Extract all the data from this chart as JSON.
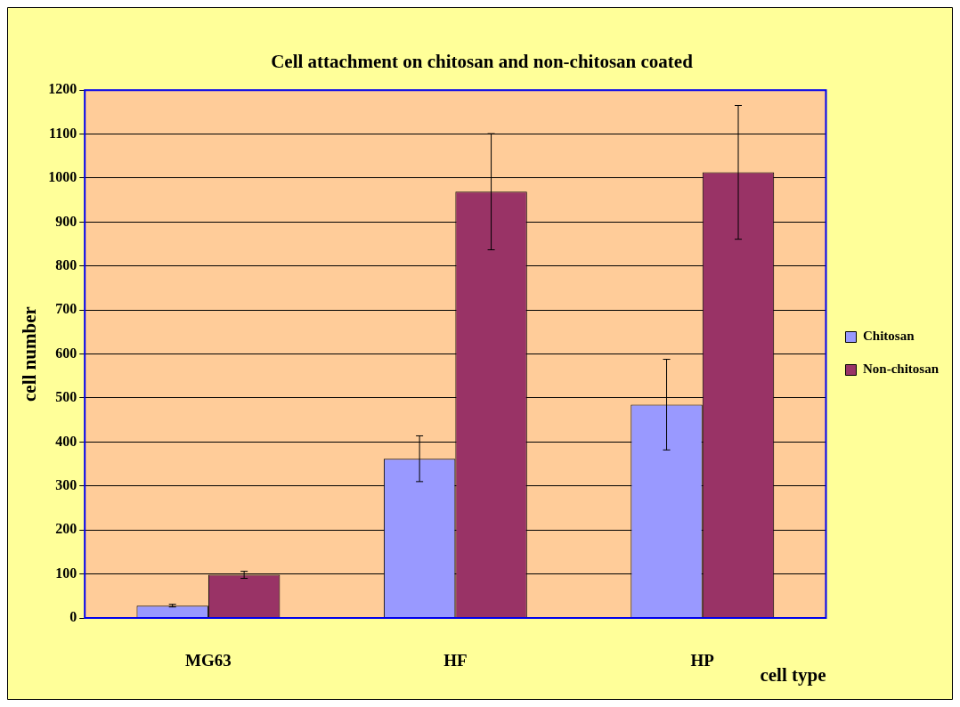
{
  "chart_data": {
    "type": "bar",
    "title": "Cell attachment on chitosan and non-chitosan coated",
    "xlabel": "cell type",
    "ylabel": "cell number",
    "categories": [
      "MG63",
      "HF",
      "HP"
    ],
    "series": [
      {
        "name": "Chitosan",
        "color": "#9999ff",
        "values": [
          28,
          362,
          485
        ],
        "errors": [
          3,
          52,
          103
        ]
      },
      {
        "name": "Non-chitosan",
        "color": "#993366",
        "values": [
          98,
          969,
          1013
        ],
        "errors": [
          8,
          132,
          152
        ]
      }
    ],
    "ylim": [
      0,
      1200
    ],
    "yticks": [
      0,
      100,
      200,
      300,
      400,
      500,
      600,
      700,
      800,
      900,
      1000,
      1100,
      1200
    ],
    "grid": "y",
    "legend": "right"
  }
}
